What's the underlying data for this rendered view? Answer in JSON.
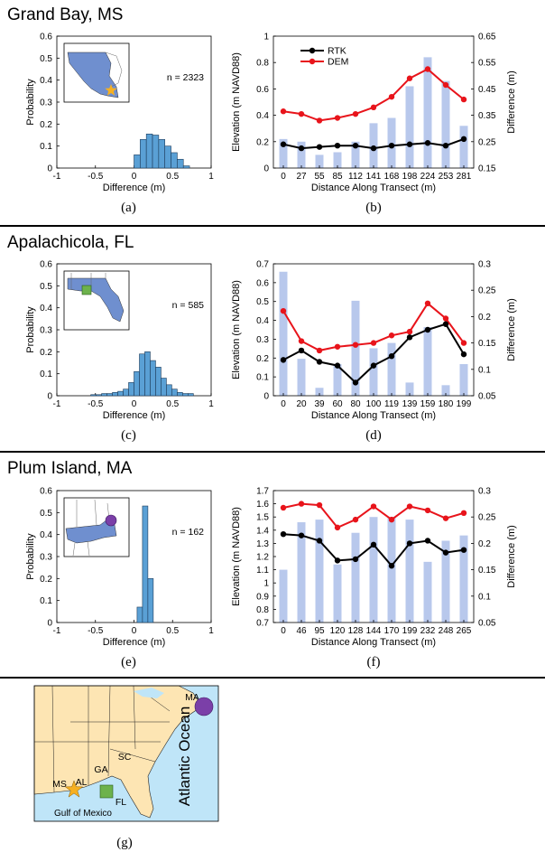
{
  "rows": [
    {
      "title": "Grand Bay, MS",
      "histogram": {
        "panel_label": "(a)",
        "n_label": "n = 2323",
        "ylabel": "Probability",
        "xlabel": "Difference (m)",
        "xlim": [
          -1,
          1
        ],
        "ylim": [
          0,
          0.6
        ],
        "xticks": [
          "-1",
          "-0.5",
          "0",
          "0.5",
          "1"
        ],
        "yticks": [
          "0",
          "0.1",
          "0.2",
          "0.3",
          "0.4",
          "0.5",
          "0.6"
        ],
        "bin_width": 0.08,
        "bin_starts": [
          0.0,
          0.08,
          0.16,
          0.24,
          0.32,
          0.4,
          0.48,
          0.56,
          0.64
        ],
        "values": [
          0.06,
          0.13,
          0.155,
          0.15,
          0.13,
          0.1,
          0.07,
          0.04,
          0.01
        ],
        "inset_state": "MS",
        "inset_marker": "star"
      },
      "transect": {
        "panel_label": "(b)",
        "ylabel_left": "Elevation (m NAVD88)",
        "ylabel_right": "Difference (m)",
        "xlabel": "Distance Along Transect (m)",
        "categories": [
          "0",
          "27",
          "55",
          "85",
          "112",
          "141",
          "168",
          "198",
          "224",
          "253",
          "281"
        ],
        "ylim_left": [
          0,
          1
        ],
        "yticks_left": [
          "0",
          "0.2",
          "0.4",
          "0.6",
          "0.8",
          "1"
        ],
        "ylim_right": [
          0.15,
          0.65
        ],
        "yticks_right": [
          "0.15",
          "0.25",
          "0.35",
          "0.45",
          "0.55",
          "0.65"
        ],
        "legend": [
          "RTK",
          "DEM"
        ],
        "rtk": [
          0.18,
          0.15,
          0.16,
          0.17,
          0.17,
          0.15,
          0.17,
          0.18,
          0.19,
          0.17,
          0.22
        ],
        "dem": [
          0.43,
          0.41,
          0.36,
          0.38,
          0.41,
          0.46,
          0.54,
          0.68,
          0.75,
          0.63,
          0.52
        ],
        "diff": [
          0.26,
          0.25,
          0.2,
          0.21,
          0.25,
          0.32,
          0.34,
          0.46,
          0.57,
          0.48,
          0.31
        ]
      }
    },
    {
      "title": "Apalachicola, FL",
      "histogram": {
        "panel_label": "(c)",
        "n_label": "n = 585",
        "ylabel": "Probability",
        "xlabel": "Difference (m)",
        "xlim": [
          -1,
          1
        ],
        "ylim": [
          0,
          0.6
        ],
        "xticks": [
          "-1",
          "-0.5",
          "0",
          "0.5",
          "1"
        ],
        "yticks": [
          "0",
          "0.1",
          "0.2",
          "0.3",
          "0.4",
          "0.5",
          "0.6"
        ],
        "bin_width": 0.07,
        "bin_starts": [
          -0.56,
          -0.49,
          -0.42,
          -0.35,
          -0.28,
          -0.21,
          -0.14,
          -0.07,
          0.0,
          0.07,
          0.14,
          0.21,
          0.28,
          0.35,
          0.42,
          0.49,
          0.56,
          0.63,
          0.7
        ],
        "values": [
          0.005,
          0.005,
          0.01,
          0.01,
          0.015,
          0.02,
          0.03,
          0.06,
          0.11,
          0.19,
          0.2,
          0.16,
          0.13,
          0.08,
          0.05,
          0.03,
          0.015,
          0.01,
          0.01
        ],
        "inset_state": "FL",
        "inset_marker": "square"
      },
      "transect": {
        "panel_label": "(d)",
        "ylabel_left": "Elevation (m NAVD88)",
        "ylabel_right": "Difference (m)",
        "xlabel": "Distance Along Transect (m)",
        "categories": [
          "0",
          "20",
          "39",
          "60",
          "80",
          "100",
          "119",
          "139",
          "159",
          "180",
          "199"
        ],
        "ylim_left": [
          0,
          0.7
        ],
        "yticks_left": [
          "0",
          "0.1",
          "0.2",
          "0.3",
          "0.4",
          "0.5",
          "0.6",
          "0.7"
        ],
        "ylim_right": [
          0.05,
          0.3
        ],
        "yticks_right": [
          "0.05",
          "0.1",
          "0.15",
          "0.2",
          "0.25",
          "0.3"
        ],
        "legend": [],
        "rtk": [
          0.19,
          0.24,
          0.18,
          0.16,
          0.07,
          0.16,
          0.21,
          0.31,
          0.35,
          0.38,
          0.22
        ],
        "dem": [
          0.45,
          0.29,
          0.24,
          0.26,
          0.27,
          0.28,
          0.32,
          0.34,
          0.49,
          0.41,
          0.28
        ],
        "diff": [
          0.285,
          0.12,
          0.065,
          0.11,
          0.23,
          0.14,
          0.15,
          0.075,
          0.18,
          0.07,
          0.11
        ]
      }
    },
    {
      "title": "Plum Island, MA",
      "histogram": {
        "panel_label": "(e)",
        "n_label": "n = 162",
        "ylabel": "Probability",
        "xlabel": "Difference (m)",
        "xlim": [
          -1,
          1
        ],
        "ylim": [
          0,
          0.6
        ],
        "xticks": [
          "-1",
          "-0.5",
          "0",
          "0.5",
          "1"
        ],
        "yticks": [
          "0",
          "0.1",
          "0.2",
          "0.3",
          "0.4",
          "0.5",
          "0.6"
        ],
        "bin_width": 0.07,
        "bin_starts": [
          0.04,
          0.11,
          0.18
        ],
        "values": [
          0.07,
          0.53,
          0.2
        ],
        "inset_state": "MA",
        "inset_marker": "circle"
      },
      "transect": {
        "panel_label": "(f)",
        "ylabel_left": "Elevation (m NAVD88)",
        "ylabel_right": "Difference (m)",
        "xlabel": "Distance Along Transect (m)",
        "categories": [
          "0",
          "46",
          "95",
          "120",
          "128",
          "144",
          "170",
          "199",
          "232",
          "248",
          "265"
        ],
        "ylim_left": [
          0.7,
          1.7
        ],
        "yticks_left": [
          "0.7",
          "0.8",
          "0.9",
          "1",
          "1.1",
          "1.2",
          "1.3",
          "1.4",
          "1.5",
          "1.6",
          "1.7"
        ],
        "ylim_right": [
          0.05,
          0.3
        ],
        "yticks_right": [
          "0.05",
          "0.1",
          "0.15",
          "0.2",
          "0.25",
          "0.3"
        ],
        "legend": [],
        "rtk": [
          1.37,
          1.36,
          1.32,
          1.17,
          1.18,
          1.29,
          1.13,
          1.3,
          1.32,
          1.23,
          1.25
        ],
        "dem": [
          1.57,
          1.6,
          1.59,
          1.42,
          1.48,
          1.58,
          1.48,
          1.58,
          1.55,
          1.49,
          1.53
        ],
        "diff": [
          0.15,
          0.24,
          0.245,
          0.16,
          0.22,
          0.25,
          0.25,
          0.245,
          0.165,
          0.205,
          0.215
        ]
      }
    }
  ],
  "overview_map": {
    "panel_label": "(g)",
    "labels": [
      "MS",
      "AL",
      "GA",
      "SC",
      "FL",
      "MA"
    ],
    "ocean_label": "Atlantic Ocean",
    "gulf_label": "Gulf of Mexico"
  },
  "colors": {
    "rtk": "#000000",
    "dem": "#e8141b",
    "diff_bars": "#b8c8ec",
    "hist_bars": "#5aa0d5",
    "land": "#fde5b3",
    "water": "#bfe5f8",
    "inset_state": "#6f8fcf",
    "star": "#f6b021",
    "square": "#6db24c",
    "circle": "#7b3fa8"
  }
}
